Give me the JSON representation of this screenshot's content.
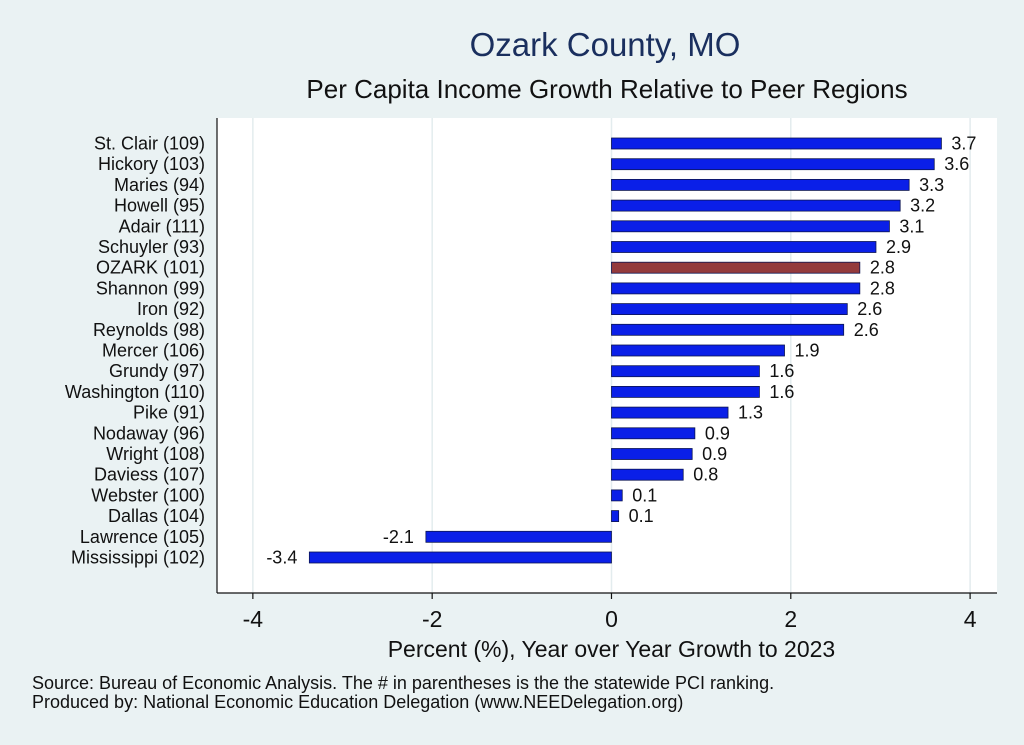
{
  "chart_data": {
    "type": "bar",
    "orientation": "horizontal",
    "title": "Ozark County, MO",
    "subtitle": "Per Capita Income Growth Relative to Peer Regions",
    "xlabel": "Percent (%), Year over Year Growth to 2023",
    "ylabel": "",
    "xlim": [
      -4.4,
      4.3
    ],
    "xticks": [
      -4,
      -2,
      0,
      2,
      4
    ],
    "grid": true,
    "categories": [
      "St. Clair (109)",
      "Hickory (103)",
      "Maries (94)",
      "Howell (95)",
      "Adair (111)",
      "Schuyler (93)",
      "OZARK (101)",
      "Shannon (99)",
      "Iron (92)",
      "Reynolds (98)",
      "Mercer (106)",
      "Grundy (97)",
      "Washington (110)",
      "Pike (91)",
      "Nodaway (96)",
      "Wright (108)",
      "Daviess (107)",
      "Webster (100)",
      "Dallas (104)",
      "Lawrence (105)",
      "Mississippi (102)"
    ],
    "values": [
      3.68,
      3.6,
      3.32,
      3.22,
      3.1,
      2.95,
      2.77,
      2.77,
      2.63,
      2.59,
      1.93,
      1.65,
      1.65,
      1.3,
      0.93,
      0.9,
      0.8,
      0.12,
      0.08,
      -2.07,
      -3.37
    ],
    "labels": [
      "3.7",
      "3.6",
      "3.3",
      "3.2",
      "3.1",
      "2.9",
      "2.8",
      "2.8",
      "2.6",
      "2.6",
      "1.9",
      "1.6",
      "1.6",
      "1.3",
      "0.9",
      "0.9",
      "0.8",
      "0.1",
      "0.1",
      "-2.1",
      "-3.4"
    ],
    "highlight": "OZARK (101)",
    "colors": {
      "bar": "#0a1fe8",
      "highlight": "#943a3c",
      "bar_edge": "#0c1552",
      "grid": "#e3ecee",
      "plot_bg": "#ffffff",
      "page_bg": "#eaf2f3"
    }
  },
  "footnotes": {
    "source": "Source: Bureau of Economic Analysis. The # in parentheses is the the statewide PCI ranking.",
    "produced": "Produced by: National Economic Education Delegation (www.NEEDelegation.org)"
  }
}
